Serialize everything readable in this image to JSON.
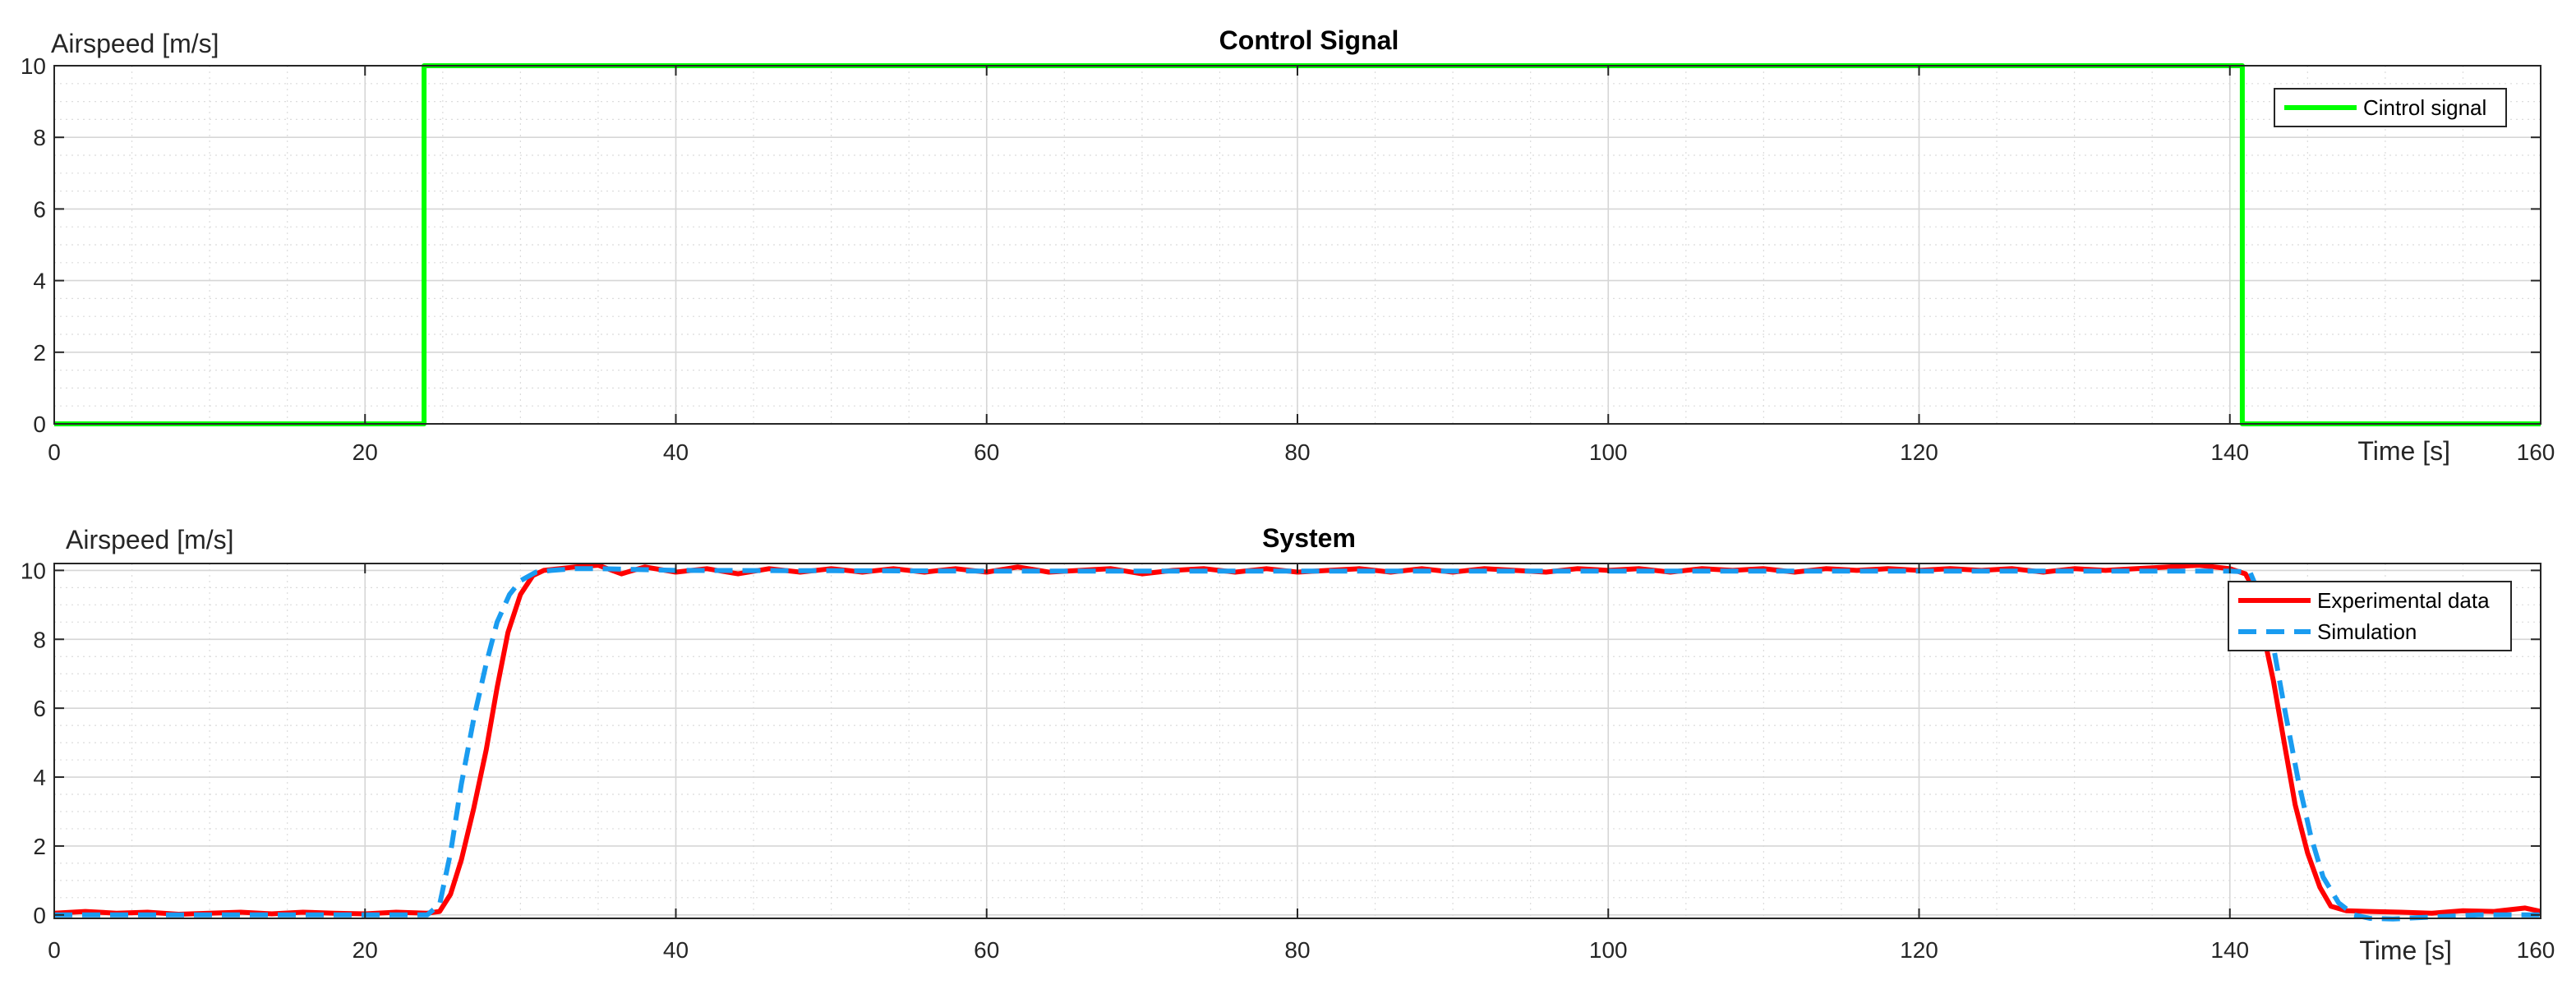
{
  "chart_data": [
    {
      "type": "line",
      "title": "Control Signal",
      "xlabel": "Time [s]",
      "ylabel": "Airspeed [m/s]",
      "xlim": [
        0,
        160
      ],
      "ylim": [
        0,
        10
      ],
      "xticks": [
        0,
        20,
        40,
        60,
        80,
        100,
        120,
        140,
        160
      ],
      "yticks": [
        0,
        2,
        4,
        6,
        8,
        10
      ],
      "grid": true,
      "minor_grid": true,
      "legend_position": "top-right",
      "series": [
        {
          "name": "Cintrol signal",
          "color": "#00ff00",
          "style": "solid",
          "x": [
            0,
            23.8,
            23.8,
            140.8,
            140.8,
            160
          ],
          "y": [
            0,
            0,
            10,
            10,
            0,
            0
          ]
        }
      ]
    },
    {
      "type": "line",
      "title": "System",
      "xlabel": "Time [s]",
      "ylabel": "Airspeed [m/s]",
      "xlim": [
        0,
        160
      ],
      "ylim": [
        -0.1,
        10.2
      ],
      "xticks": [
        0,
        20,
        40,
        60,
        80,
        100,
        120,
        140,
        160
      ],
      "yticks": [
        0,
        2,
        4,
        6,
        8,
        10
      ],
      "grid": true,
      "minor_grid": true,
      "legend_position": "top-right",
      "series": [
        {
          "name": "Experimental data",
          "color": "#ff0000",
          "style": "solid",
          "x": [
            0,
            2,
            4,
            6,
            8,
            10,
            12,
            14,
            16,
            18,
            20,
            22,
            24,
            24.8,
            25.5,
            26.2,
            27,
            27.8,
            28.5,
            29.2,
            30,
            30.8,
            31.5,
            32.5,
            33.5,
            35,
            36.5,
            38,
            40,
            42,
            44,
            46,
            48,
            50,
            52,
            54,
            56,
            58,
            60,
            62,
            64,
            66,
            68,
            70,
            72,
            74,
            76,
            78,
            80,
            82,
            84,
            86,
            88,
            90,
            92,
            94,
            96,
            98,
            100,
            102,
            104,
            106,
            108,
            110,
            112,
            114,
            116,
            118,
            120,
            122,
            124,
            126,
            128,
            130,
            132,
            134,
            136,
            138,
            140,
            141,
            141.5,
            142,
            142.8,
            143.5,
            144.2,
            145,
            145.8,
            146.5,
            147.5,
            149,
            151,
            153,
            155,
            157,
            159,
            160
          ],
          "y": [
            0.05,
            0.1,
            0.05,
            0.08,
            0.02,
            0.05,
            0.08,
            0.03,
            0.08,
            0.05,
            0.03,
            0.08,
            0.05,
            0.1,
            0.6,
            1.6,
            3.1,
            4.8,
            6.6,
            8.2,
            9.3,
            9.85,
            10.0,
            10.05,
            10.1,
            10.15,
            9.9,
            10.1,
            9.95,
            10.05,
            9.9,
            10.05,
            9.95,
            10.05,
            9.95,
            10.05,
            9.95,
            10.05,
            9.95,
            10.1,
            9.95,
            10.0,
            10.05,
            9.9,
            10.0,
            10.05,
            9.95,
            10.05,
            9.95,
            10.0,
            10.05,
            9.95,
            10.05,
            9.95,
            10.05,
            10.0,
            9.95,
            10.05,
            10.0,
            10.05,
            9.95,
            10.05,
            10.0,
            10.05,
            9.95,
            10.05,
            10.0,
            10.05,
            10.0,
            10.05,
            10.0,
            10.05,
            9.95,
            10.05,
            10.0,
            10.05,
            10.1,
            10.15,
            10.05,
            9.9,
            9.5,
            8.5,
            6.8,
            5.0,
            3.2,
            1.8,
            0.8,
            0.25,
            0.12,
            0.1,
            0.08,
            0.05,
            0.12,
            0.1,
            0.2,
            0.1
          ]
        },
        {
          "name": "Simulation",
          "color": "#1a9cf0",
          "style": "dashed",
          "x": [
            0,
            24,
            24.8,
            25.5,
            26.2,
            27,
            27.8,
            28.5,
            29.3,
            30,
            31,
            32,
            33.5,
            35,
            40,
            60,
            80,
            100,
            120,
            140,
            141.3,
            142,
            142.8,
            143.6,
            144.4,
            145.2,
            146,
            147,
            148,
            149,
            150.5,
            152,
            154,
            156,
            158,
            160
          ],
          "y": [
            0,
            0,
            0.3,
            1.8,
            3.8,
            5.7,
            7.3,
            8.5,
            9.3,
            9.7,
            9.95,
            10.0,
            10.05,
            10.05,
            10.0,
            9.98,
            9.98,
            9.98,
            9.98,
            9.98,
            9.95,
            9.2,
            7.8,
            5.8,
            3.9,
            2.3,
            1.1,
            0.35,
            0.0,
            -0.1,
            -0.12,
            -0.08,
            -0.04,
            0.0,
            0.0,
            0.0
          ]
        }
      ]
    }
  ]
}
